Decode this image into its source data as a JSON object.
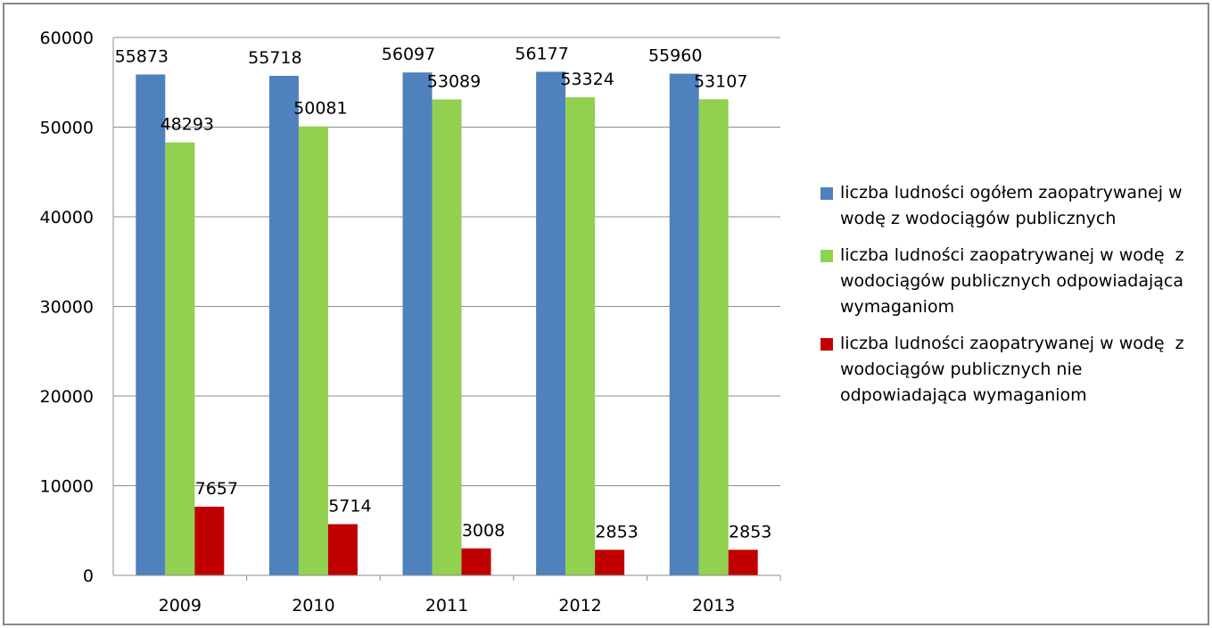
{
  "chart_data": {
    "type": "bar",
    "categories": [
      "2009",
      "2010",
      "2011",
      "2012",
      "2013"
    ],
    "series": [
      {
        "name": "liczba ludności ogółem zaopatrywanej w wodę z wodociągów publicznych",
        "color": "#4f81bd",
        "values": [
          55873,
          55718,
          56097,
          56177,
          55960
        ]
      },
      {
        "name": "liczba ludności zaopatrywanej w wodę  z wodociągów publicznych odpowiadająca wymaganiom",
        "color": "#92d050",
        "values": [
          48293,
          50081,
          53089,
          53324,
          53107
        ]
      },
      {
        "name": "liczba ludności zaopatrywanej w wodę  z wodociągów publicznych nie odpowiadająca wymaganiom",
        "color": "#c00000",
        "values": [
          7657,
          5714,
          3008,
          2853,
          2853
        ]
      }
    ],
    "ylim": [
      0,
      60000
    ],
    "yticks": [
      0,
      10000,
      20000,
      30000,
      40000,
      50000,
      60000
    ],
    "grid": true,
    "legend": "right"
  }
}
